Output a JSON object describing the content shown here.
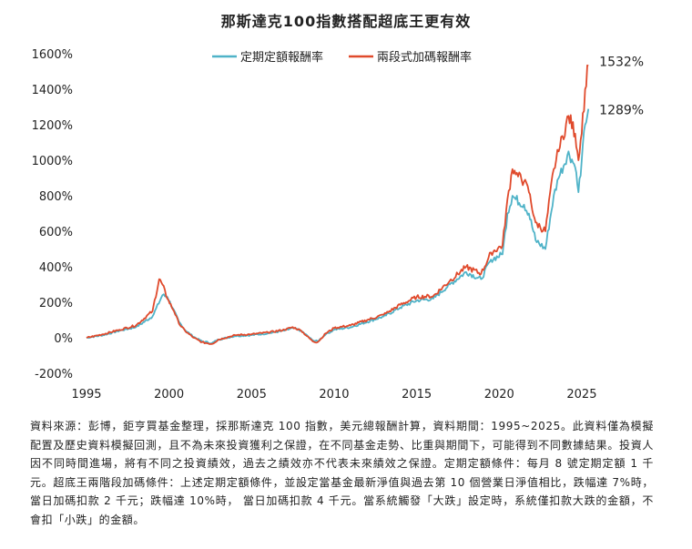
{
  "chart_data": {
    "type": "line",
    "title": "那斯達克100指數搭配超底王更有效",
    "xlabel": "",
    "ylabel": "",
    "xlim": [
      1995,
      2025.5
    ],
    "ylim": [
      -200,
      1600
    ],
    "y_ticks": [
      "1600%",
      "1400%",
      "1200%",
      "1000%",
      "800%",
      "600%",
      "400%",
      "200%",
      "0%",
      "-200%"
    ],
    "y_tick_values": [
      1600,
      1400,
      1200,
      1000,
      800,
      600,
      400,
      200,
      0,
      -200
    ],
    "x_ticks": [
      "1995",
      "2000",
      "2005",
      "2010",
      "2015",
      "2020",
      "2025"
    ],
    "x_tick_values": [
      1995,
      2000,
      2005,
      2010,
      2015,
      2020,
      2025
    ],
    "legend_position": "top-center",
    "grid": false,
    "series": [
      {
        "name": "定期定額報酬率",
        "color": "#4fb3c8",
        "end_label": "1289%",
        "points": [
          [
            1995,
            0
          ],
          [
            1996,
            15
          ],
          [
            1997,
            40
          ],
          [
            1998,
            60
          ],
          [
            1999,
            120
          ],
          [
            1999.6,
            240
          ],
          [
            1999.9,
            230
          ],
          [
            2000.2,
            170
          ],
          [
            2000.6,
            90
          ],
          [
            2001,
            40
          ],
          [
            2001.5,
            5
          ],
          [
            2002,
            -20
          ],
          [
            2002.6,
            -30
          ],
          [
            2003,
            -10
          ],
          [
            2004,
            10
          ],
          [
            2005,
            15
          ],
          [
            2006,
            25
          ],
          [
            2007,
            40
          ],
          [
            2007.5,
            55
          ],
          [
            2008,
            40
          ],
          [
            2008.7,
            -15
          ],
          [
            2009,
            -20
          ],
          [
            2009.5,
            20
          ],
          [
            2010,
            45
          ],
          [
            2011,
            60
          ],
          [
            2012,
            90
          ],
          [
            2013,
            120
          ],
          [
            2014,
            170
          ],
          [
            2015,
            210
          ],
          [
            2016,
            220
          ],
          [
            2017,
            300
          ],
          [
            2018,
            370
          ],
          [
            2018.9,
            330
          ],
          [
            2019.5,
            440
          ],
          [
            2020.2,
            470
          ],
          [
            2020.5,
            700
          ],
          [
            2020.8,
            800
          ],
          [
            2021,
            780
          ],
          [
            2021.5,
            750
          ],
          [
            2021.8,
            700
          ],
          [
            2022.2,
            550
          ],
          [
            2022.8,
            500
          ],
          [
            2023.3,
            800
          ],
          [
            2023.6,
            900
          ],
          [
            2024.2,
            1050
          ],
          [
            2024.6,
            960
          ],
          [
            2024.8,
            820
          ],
          [
            2025,
            1000
          ],
          [
            2025.2,
            1200
          ],
          [
            2025.4,
            1289
          ]
        ]
      },
      {
        "name": "兩段式加碼報酬率",
        "color": "#e04a2c",
        "end_label": "1532%",
        "points": [
          [
            1995,
            0
          ],
          [
            1996,
            20
          ],
          [
            1997,
            45
          ],
          [
            1998,
            70
          ],
          [
            1999,
            150
          ],
          [
            1999.4,
            330
          ],
          [
            1999.6,
            300
          ],
          [
            1999.9,
            220
          ],
          [
            2000.3,
            150
          ],
          [
            2000.6,
            80
          ],
          [
            2001,
            35
          ],
          [
            2001.5,
            0
          ],
          [
            2002,
            -25
          ],
          [
            2002.6,
            -35
          ],
          [
            2003,
            -10
          ],
          [
            2004,
            15
          ],
          [
            2005,
            20
          ],
          [
            2006,
            30
          ],
          [
            2007,
            45
          ],
          [
            2007.5,
            60
          ],
          [
            2008,
            40
          ],
          [
            2008.7,
            -20
          ],
          [
            2009,
            -25
          ],
          [
            2009.5,
            25
          ],
          [
            2010,
            55
          ],
          [
            2011,
            70
          ],
          [
            2012,
            100
          ],
          [
            2013,
            130
          ],
          [
            2014,
            185
          ],
          [
            2015,
            230
          ],
          [
            2016,
            235
          ],
          [
            2017,
            320
          ],
          [
            2018,
            400
          ],
          [
            2018.9,
            360
          ],
          [
            2019.5,
            480
          ],
          [
            2020.2,
            520
          ],
          [
            2020.5,
            780
          ],
          [
            2020.8,
            950
          ],
          [
            2021,
            920
          ],
          [
            2021.5,
            880
          ],
          [
            2021.8,
            820
          ],
          [
            2022.2,
            650
          ],
          [
            2022.8,
            600
          ],
          [
            2023.3,
            950
          ],
          [
            2023.6,
            1050
          ],
          [
            2024.2,
            1250
          ],
          [
            2024.6,
            1150
          ],
          [
            2024.8,
            1000
          ],
          [
            2025,
            1150
          ],
          [
            2025.2,
            1400
          ],
          [
            2025.4,
            1532
          ]
        ]
      }
    ]
  },
  "footnote": "資料來源：彭博，鉅亨買基金整理，採那斯達克 100 指數，美元總報酬計算，資料期間：1995~2025。此資料僅為模擬配置及歷史資料模擬回測，且不為未來投資獲利之保證，在不同基金走勢、比重與期間下，可能得到不同數據結果。投資人因不同時間進場，將有不同之投資績效，過去之績效亦不代表未來績效之保證。定期定額條件：每月 8 號定期定額 1 千元。超底王兩階段加碼條件：上述定期定額條件，並設定當基金最新淨值與過去第 10 個營業日淨值相比，跌幅達 7%時，當日加碼扣款 2 千元；跌幅達 10%時， 當日加碼扣款 4 千元。當系統觸發「大跌」設定時，系統僅扣款大跌的金額，不會扣「小跌」的金額。"
}
